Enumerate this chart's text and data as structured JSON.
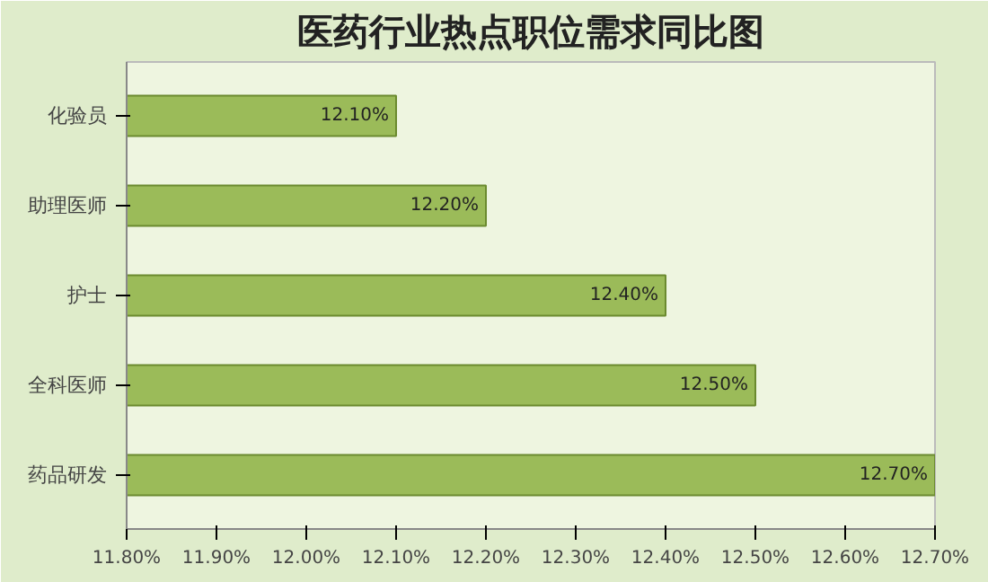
{
  "chart_data": {
    "type": "bar",
    "orientation": "horizontal",
    "title": "医药行业热点职位需求同比图",
    "categories": [
      "化验员",
      "助理医师",
      "护士",
      "全科医师",
      "药品研发"
    ],
    "values": [
      12.1,
      12.2,
      12.4,
      12.5,
      12.7
    ],
    "value_labels": [
      "12.10%",
      "12.20%",
      "12.40%",
      "12.50%",
      "12.70%"
    ],
    "color": "#9bbb59",
    "xlim": [
      11.8,
      12.7
    ],
    "xticks": [
      {
        "value": 11.8,
        "label": "11.80%"
      },
      {
        "value": 11.9,
        "label": "11.90%"
      },
      {
        "value": 12.0,
        "label": "12.00%"
      },
      {
        "value": 12.1,
        "label": "12.10%"
      },
      {
        "value": 12.2,
        "label": "12.20%"
      },
      {
        "value": 12.3,
        "label": "12.30%"
      },
      {
        "value": 12.4,
        "label": "12.40%"
      },
      {
        "value": 12.5,
        "label": "12.50%"
      },
      {
        "value": 12.6,
        "label": "12.60%"
      },
      {
        "value": 12.7,
        "label": "12.70%"
      }
    ],
    "grid": false
  }
}
